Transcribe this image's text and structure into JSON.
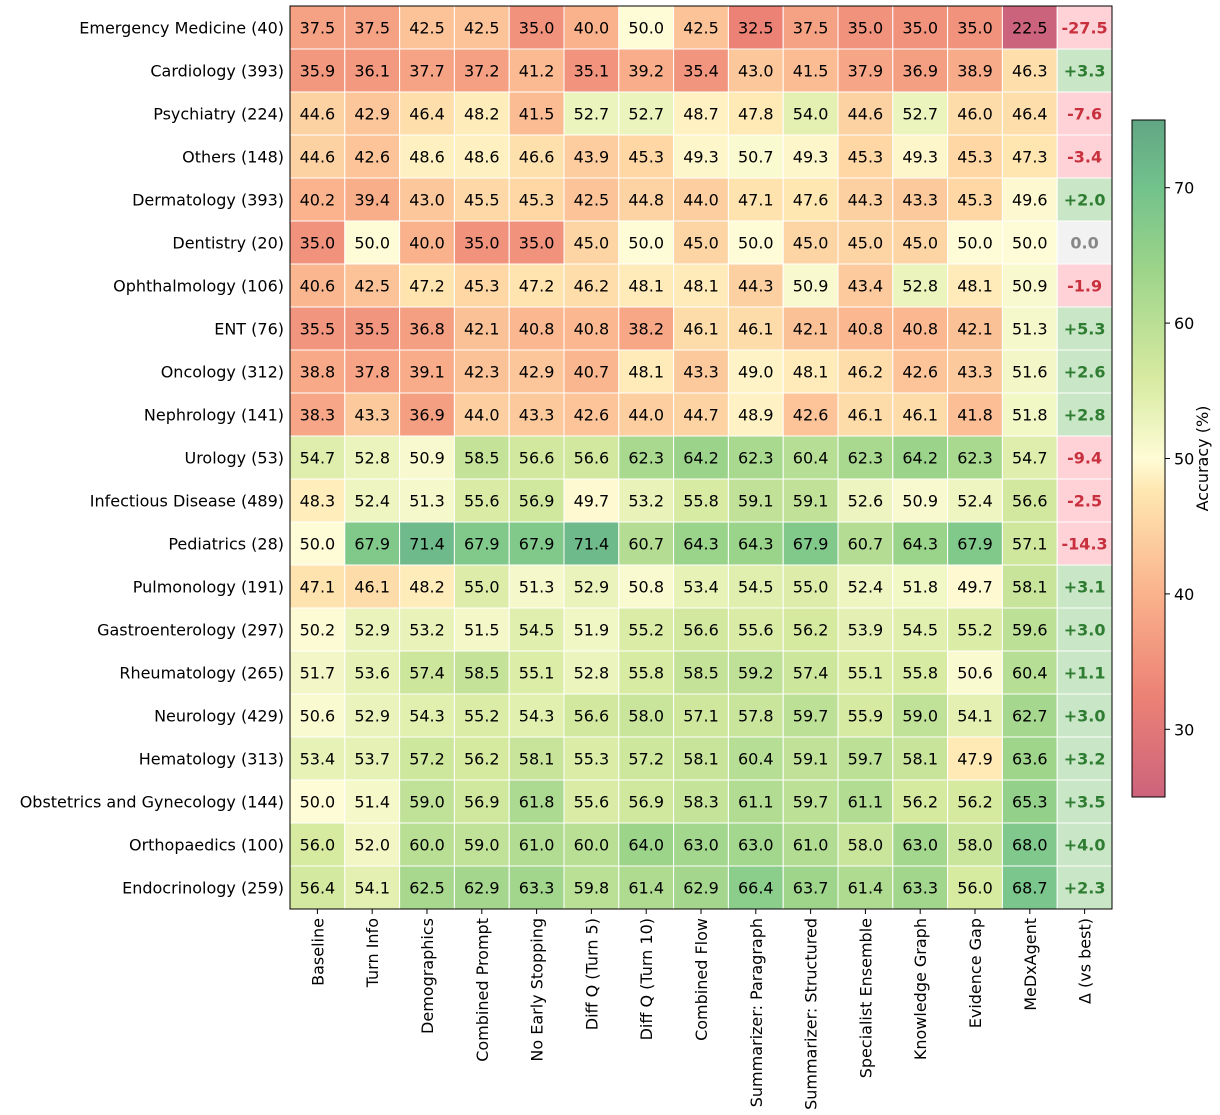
{
  "chart_data": {
    "type": "heatmap",
    "colorbar_label": "Accuracy (%)",
    "colorbar_range": [
      25,
      75
    ],
    "colorbar_ticks": [
      30,
      40,
      50,
      60,
      70
    ],
    "rows": [
      "Emergency Medicine (40)",
      "Cardiology (393)",
      "Psychiatry (224)",
      "Others (148)",
      "Dermatology (393)",
      "Dentistry (20)",
      "Ophthalmology (106)",
      "ENT (76)",
      "Oncology (312)",
      "Nephrology (141)",
      "Urology (53)",
      "Infectious Disease (489)",
      "Pediatrics (28)",
      "Pulmonology (191)",
      "Gastroenterology (297)",
      "Rheumatology (265)",
      "Neurology (429)",
      "Hematology (313)",
      "Obstetrics and Gynecology (144)",
      "Orthopaedics (100)",
      "Endocrinology (259)"
    ],
    "columns": [
      "Baseline",
      "Turn Info",
      "Demographics",
      "Combined Prompt",
      "No Early Stopping",
      "Diff Q (Turn 5)",
      "Diff Q (Turn 10)",
      "Combined Flow",
      "Summarizer: Paragraph",
      "Summarizer: Structured",
      "Specialist Ensemble",
      "Knowledge Graph",
      "Evidence Gap",
      "MeDxAgent"
    ],
    "delta_column": "Δ (vs best)",
    "values": [
      [
        37.5,
        37.5,
        42.5,
        42.5,
        35.0,
        40.0,
        50.0,
        42.5,
        32.5,
        37.5,
        35.0,
        35.0,
        35.0,
        22.5
      ],
      [
        35.9,
        36.1,
        37.7,
        37.2,
        41.2,
        35.1,
        39.2,
        35.4,
        43.0,
        41.5,
        37.9,
        36.9,
        38.9,
        46.3
      ],
      [
        44.6,
        42.9,
        46.4,
        48.2,
        41.5,
        52.7,
        52.7,
        48.7,
        47.8,
        54.0,
        44.6,
        52.7,
        46.0,
        46.4
      ],
      [
        44.6,
        42.6,
        48.6,
        48.6,
        46.6,
        43.9,
        45.3,
        49.3,
        50.7,
        49.3,
        45.3,
        49.3,
        45.3,
        47.3
      ],
      [
        40.2,
        39.4,
        43.0,
        45.5,
        45.3,
        42.5,
        44.8,
        44.0,
        47.1,
        47.6,
        44.3,
        43.3,
        45.3,
        49.6
      ],
      [
        35.0,
        50.0,
        40.0,
        35.0,
        35.0,
        45.0,
        50.0,
        45.0,
        50.0,
        45.0,
        45.0,
        45.0,
        50.0,
        50.0
      ],
      [
        40.6,
        42.5,
        47.2,
        45.3,
        47.2,
        46.2,
        48.1,
        48.1,
        44.3,
        50.9,
        43.4,
        52.8,
        48.1,
        50.9
      ],
      [
        35.5,
        35.5,
        36.8,
        42.1,
        40.8,
        40.8,
        38.2,
        46.1,
        46.1,
        42.1,
        40.8,
        40.8,
        42.1,
        51.3
      ],
      [
        38.8,
        37.8,
        39.1,
        42.3,
        42.9,
        40.7,
        48.1,
        43.3,
        49.0,
        48.1,
        46.2,
        42.6,
        43.3,
        51.6
      ],
      [
        38.3,
        43.3,
        36.9,
        44.0,
        43.3,
        42.6,
        44.0,
        44.7,
        48.9,
        42.6,
        46.1,
        46.1,
        41.8,
        51.8
      ],
      [
        54.7,
        52.8,
        50.9,
        58.5,
        56.6,
        56.6,
        62.3,
        64.2,
        62.3,
        60.4,
        62.3,
        64.2,
        62.3,
        54.7
      ],
      [
        48.3,
        52.4,
        51.3,
        55.6,
        56.9,
        49.7,
        53.2,
        55.8,
        59.1,
        59.1,
        52.6,
        50.9,
        52.4,
        56.6
      ],
      [
        50.0,
        67.9,
        71.4,
        67.9,
        67.9,
        71.4,
        60.7,
        64.3,
        64.3,
        67.9,
        60.7,
        64.3,
        67.9,
        57.1
      ],
      [
        47.1,
        46.1,
        48.2,
        55.0,
        51.3,
        52.9,
        50.8,
        53.4,
        54.5,
        55.0,
        52.4,
        51.8,
        49.7,
        58.1
      ],
      [
        50.2,
        52.9,
        53.2,
        51.5,
        54.5,
        51.9,
        55.2,
        56.6,
        55.6,
        56.2,
        53.9,
        54.5,
        55.2,
        59.6
      ],
      [
        51.7,
        53.6,
        57.4,
        58.5,
        55.1,
        52.8,
        55.8,
        58.5,
        59.2,
        57.4,
        55.1,
        55.8,
        50.6,
        60.4
      ],
      [
        50.6,
        52.9,
        54.3,
        55.2,
        54.3,
        56.6,
        58.0,
        57.1,
        57.8,
        59.7,
        55.9,
        59.0,
        54.1,
        62.7
      ],
      [
        53.4,
        53.7,
        57.2,
        56.2,
        58.1,
        55.3,
        57.2,
        58.1,
        60.4,
        59.1,
        59.7,
        58.1,
        47.9,
        63.6
      ],
      [
        50.0,
        51.4,
        59.0,
        56.9,
        61.8,
        55.6,
        56.9,
        58.3,
        61.1,
        59.7,
        61.1,
        56.2,
        56.2,
        65.3
      ],
      [
        56.0,
        52.0,
        60.0,
        59.0,
        61.0,
        60.0,
        64.0,
        63.0,
        63.0,
        61.0,
        58.0,
        63.0,
        58.0,
        68.0
      ],
      [
        56.4,
        54.1,
        62.5,
        62.9,
        63.3,
        59.8,
        61.4,
        62.9,
        66.4,
        63.7,
        61.4,
        63.3,
        56.0,
        68.7
      ]
    ],
    "delta": [
      "-27.5",
      "+3.3",
      "-7.6",
      "-3.4",
      "+2.0",
      "0.0",
      "-1.9",
      "+5.3",
      "+2.6",
      "+2.8",
      "-9.4",
      "-2.5",
      "-14.3",
      "+3.1",
      "+3.0",
      "+1.1",
      "+3.0",
      "+3.2",
      "+3.5",
      "+4.0",
      "+2.3"
    ],
    "colors": {
      "negative_bg": "#ffd2d8",
      "negative_text": "#c8303e",
      "positive_bg": "#c9e6c6",
      "positive_text": "#2e7d32",
      "zero_bg": "#f2f2f2",
      "zero_text": "#888888"
    }
  }
}
